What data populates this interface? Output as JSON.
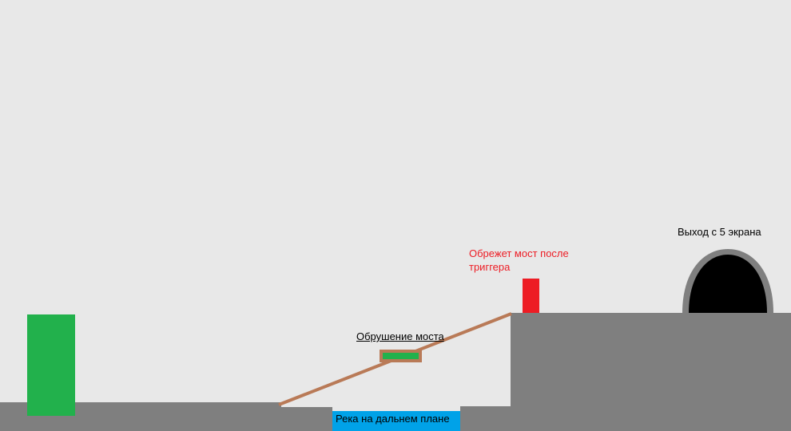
{
  "labels": {
    "bridge_collapse": "Обрушение моста",
    "cut_bridge": "Обрежет мост после триггера",
    "exit": "Выход с 5 экрана",
    "river": "Река на дальнем плане"
  },
  "colors": {
    "background": "#e8e8e8",
    "ground": "#7f7f7f",
    "player": "#22b14c",
    "bridge": "#b97a57",
    "trigger": "#ed1c24",
    "river": "#00a2e8",
    "cave_rim": "#7f7f7f",
    "cave": "#000000"
  }
}
